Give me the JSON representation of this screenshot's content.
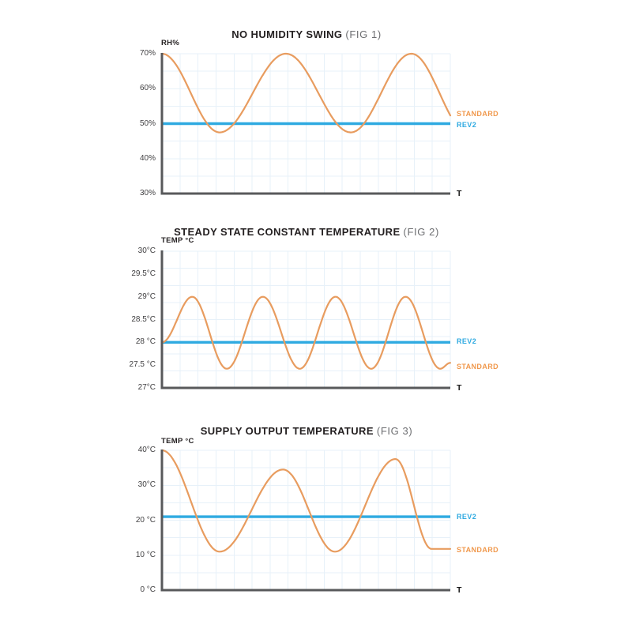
{
  "page": {
    "background": "#FFFFFF"
  },
  "colors": {
    "standard": "#E89C5F",
    "standard_label": "#F0984C",
    "rev2": "#2FAAE1",
    "axis": "#58595B",
    "grid": "#E7F1F9",
    "tick_text": "#414042",
    "title_text": "#231F20",
    "fig_text": "#6D6E71"
  },
  "chart_data": [
    {
      "type": "line",
      "title": "NO HUMIDITY SWING",
      "fig": "(FIG 1)",
      "ylabel": "RH%",
      "xlabel": "T",
      "ylim": [
        30,
        70
      ],
      "grid": true,
      "legend_position": "right",
      "y_ticks": [
        {
          "label": "70%",
          "value": 70
        },
        {
          "label": "60%",
          "value": 60
        },
        {
          "label": "50%",
          "value": 50
        },
        {
          "label": "40%",
          "value": 40
        },
        {
          "label": "30%",
          "value": 30
        }
      ],
      "series": [
        {
          "name": "REV2",
          "kind": "hline",
          "value": 50,
          "label_at_value": 49.6,
          "color_key": "rev2",
          "label_color_key": "rev2"
        },
        {
          "name": "STANDARD",
          "kind": "wave",
          "label_at_value": 52.8,
          "color_key": "standard",
          "label_color_key": "standard_label",
          "extrema": [
            [
              0,
              70
            ],
            [
              0.2,
              47.5
            ],
            [
              0.43,
              70
            ],
            [
              0.655,
              47.5
            ],
            [
              0.865,
              70
            ],
            [
              1.06,
              47.5
            ]
          ]
        }
      ]
    },
    {
      "type": "line",
      "title": "STEADY STATE CONSTANT TEMPERATURE",
      "fig": "(FIG 2)",
      "ylabel": "TEMP °C",
      "xlabel": "T",
      "ylim": [
        27,
        30
      ],
      "grid": true,
      "legend_position": "right",
      "y_ticks": [
        {
          "label": "30°C",
          "value": 30
        },
        {
          "label": "29.5°C",
          "value": 29.5
        },
        {
          "label": "29°C",
          "value": 29
        },
        {
          "label": "28.5°C",
          "value": 28.5
        },
        {
          "label": "28 °C",
          "value": 28
        },
        {
          "label": "27.5 °C",
          "value": 27.5
        },
        {
          "label": "27°C",
          "value": 27
        }
      ],
      "series": [
        {
          "name": "REV2",
          "kind": "hline",
          "value": 28,
          "label_at_value": 28.02,
          "color_key": "rev2",
          "label_color_key": "rev2"
        },
        {
          "name": "STANDARD",
          "kind": "wave",
          "label_at_value": 27.46,
          "color_key": "standard",
          "label_color_key": "standard_label",
          "extrema": [
            [
              0,
              28
            ],
            [
              0.105,
              29
            ],
            [
              0.225,
              27.42
            ],
            [
              0.35,
              29
            ],
            [
              0.478,
              27.42
            ],
            [
              0.602,
              29
            ],
            [
              0.726,
              27.42
            ],
            [
              0.845,
              29
            ],
            [
              0.965,
              27.42
            ],
            [
              1.0,
              27.55
            ]
          ]
        }
      ]
    },
    {
      "type": "line",
      "title": "SUPPLY OUTPUT TEMPERATURE",
      "fig": "(FIG 3)",
      "ylabel": "TEMP °C",
      "xlabel": "T",
      "ylim": [
        0,
        40
      ],
      "grid": true,
      "legend_position": "right",
      "y_ticks": [
        {
          "label": "40°C",
          "value": 40
        },
        {
          "label": "30°C",
          "value": 30
        },
        {
          "label": "20 °C",
          "value": 20
        },
        {
          "label": "10 °C",
          "value": 10
        },
        {
          "label": "0 °C",
          "value": 0
        }
      ],
      "series": [
        {
          "name": "REV2",
          "kind": "hline",
          "value": 21,
          "label_at_value": 21,
          "color_key": "rev2",
          "label_color_key": "rev2"
        },
        {
          "name": "STANDARD",
          "kind": "wave",
          "label_at_value": 11.4,
          "color_key": "standard",
          "label_color_key": "standard_label",
          "extrema": [
            [
              0,
              40
            ],
            [
              0.2,
              11
            ],
            [
              0.42,
              34.5
            ],
            [
              0.6,
              11
            ],
            [
              0.81,
              37.5
            ],
            [
              0.935,
              11.8
            ],
            [
              1.0,
              11.8
            ]
          ]
        }
      ]
    }
  ]
}
